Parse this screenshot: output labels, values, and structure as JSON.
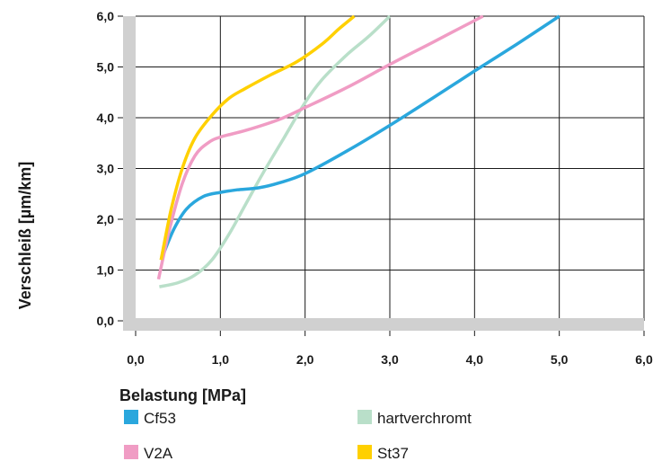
{
  "chart_data": {
    "type": "line",
    "xlabel": "Belastung [MPa]",
    "ylabel": "Verschleiß [µm/km]",
    "xlim": [
      0,
      6
    ],
    "ylim": [
      0,
      6
    ],
    "x_ticks": [
      "0,0",
      "1,0",
      "2,0",
      "3,0",
      "4,0",
      "5,0",
      "6,0"
    ],
    "y_ticks": [
      "0,0",
      "1,0",
      "2,0",
      "3,0",
      "4,0",
      "5,0",
      "6,0"
    ],
    "grid": true,
    "legend_position": "bottom",
    "series": [
      {
        "name": "Cf53",
        "color": "#2aa7dd",
        "points": [
          [
            0.3,
            1.2
          ],
          [
            0.45,
            1.8
          ],
          [
            0.6,
            2.2
          ],
          [
            0.8,
            2.45
          ],
          [
            1.0,
            2.53
          ],
          [
            1.2,
            2.58
          ],
          [
            1.45,
            2.62
          ],
          [
            1.7,
            2.72
          ],
          [
            2.0,
            2.9
          ],
          [
            2.5,
            3.35
          ],
          [
            3.0,
            3.85
          ],
          [
            3.5,
            4.38
          ],
          [
            4.0,
            4.92
          ],
          [
            4.5,
            5.45
          ],
          [
            5.0,
            6.0
          ]
        ]
      },
      {
        "name": "hartverchromt",
        "color": "#b9dfc9",
        "points": [
          [
            0.28,
            0.67
          ],
          [
            0.5,
            0.75
          ],
          [
            0.7,
            0.9
          ],
          [
            0.9,
            1.2
          ],
          [
            1.1,
            1.7
          ],
          [
            1.3,
            2.3
          ],
          [
            1.5,
            2.9
          ],
          [
            1.75,
            3.6
          ],
          [
            2.0,
            4.3
          ],
          [
            2.2,
            4.75
          ],
          [
            2.5,
            5.25
          ],
          [
            2.75,
            5.6
          ],
          [
            3.0,
            6.0
          ]
        ]
      },
      {
        "name": "V2A",
        "color": "#f09cc4",
        "points": [
          [
            0.27,
            0.82
          ],
          [
            0.4,
            1.8
          ],
          [
            0.55,
            2.7
          ],
          [
            0.7,
            3.25
          ],
          [
            0.85,
            3.5
          ],
          [
            1.0,
            3.62
          ],
          [
            1.3,
            3.75
          ],
          [
            1.7,
            3.97
          ],
          [
            2.0,
            4.2
          ],
          [
            2.5,
            4.6
          ],
          [
            3.0,
            5.05
          ],
          [
            3.5,
            5.48
          ],
          [
            4.1,
            6.0
          ]
        ]
      },
      {
        "name": "St37",
        "color": "#ffd000",
        "points": [
          [
            0.3,
            1.2
          ],
          [
            0.42,
            2.2
          ],
          [
            0.55,
            3.0
          ],
          [
            0.7,
            3.6
          ],
          [
            0.9,
            4.05
          ],
          [
            1.1,
            4.38
          ],
          [
            1.3,
            4.58
          ],
          [
            1.6,
            4.85
          ],
          [
            1.9,
            5.1
          ],
          [
            2.2,
            5.45
          ],
          [
            2.4,
            5.75
          ],
          [
            2.58,
            6.0
          ]
        ]
      }
    ]
  },
  "legend": [
    {
      "label": "Cf53",
      "color": "#2aa7dd"
    },
    {
      "label": "V2A",
      "color": "#f09cc4"
    },
    {
      "label": "hartverchromt",
      "color": "#b9dfc9"
    },
    {
      "label": "St37",
      "color": "#ffd000"
    }
  ]
}
